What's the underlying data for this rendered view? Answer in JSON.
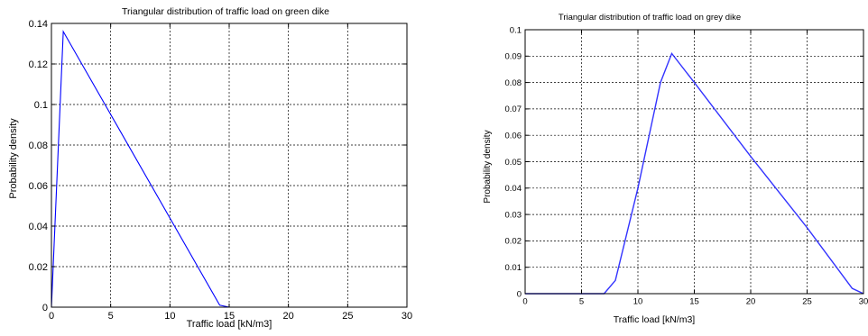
{
  "chart_data": [
    {
      "type": "line",
      "title": "Triangular distribution of traffic load on green dike",
      "xlabel": "Traffic load [kN/m3]",
      "ylabel": "Probability density",
      "xlim": [
        0,
        30
      ],
      "ylim": [
        0,
        0.14
      ],
      "xticks": [
        "0",
        "5",
        "10",
        "15",
        "20",
        "25",
        "30"
      ],
      "yticks": [
        "0",
        "0.02",
        "0.04",
        "0.06",
        "0.08",
        "0.1",
        "0.12",
        "0.14"
      ],
      "grid": true,
      "series": [
        {
          "color": "#0000ff",
          "x": [
            0,
            1,
            14.2,
            15,
            30
          ],
          "y": [
            0,
            0.136,
            0.001,
            0,
            0
          ]
        }
      ]
    },
    {
      "type": "line",
      "title": "Triangular distribution of traffic load on grey dike",
      "xlabel": "Traffic load [kN/m3]",
      "ylabel": "Probability density",
      "xlim": [
        0,
        30
      ],
      "ylim": [
        0,
        0.1
      ],
      "xticks": [
        "0",
        "5",
        "10",
        "15",
        "20",
        "25",
        "30"
      ],
      "yticks": [
        "0",
        "0.01",
        "0.02",
        "0.03",
        "0.04",
        "0.05",
        "0.06",
        "0.07",
        "0.08",
        "0.09",
        "0.1"
      ],
      "grid": true,
      "series": [
        {
          "color": "#3333ff",
          "x": [
            0,
            7,
            8,
            10,
            12,
            13,
            15,
            20,
            25,
            29,
            30
          ],
          "y": [
            0,
            0,
            0.005,
            0.04,
            0.08,
            0.091,
            0.08,
            0.052,
            0.025,
            0.002,
            0
          ]
        }
      ]
    }
  ]
}
